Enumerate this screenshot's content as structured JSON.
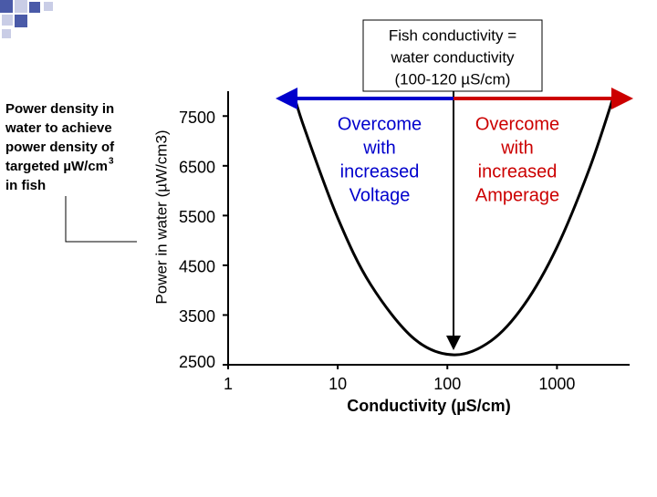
{
  "chart_data": {
    "type": "line",
    "x_label": "Conductivity (µS/cm)",
    "y_label": "Power in water (µW/cm3)",
    "x": [
      3.9,
      5,
      10,
      20,
      50,
      115,
      250,
      500,
      1000,
      2000,
      3400
    ],
    "series": [
      {
        "color": "#000000",
        "values": [
          7985,
          7236,
          5452,
          4111,
          3019,
          2700,
          2980,
          3700,
          4864,
          6472,
          8000
        ]
      }
    ],
    "xlim": [
      1,
      4600
    ],
    "xticks": [
      1,
      10,
      100,
      1000
    ],
    "log_x": true,
    "ylim": [
      2500,
      8000
    ],
    "yticks": [
      2500,
      3500,
      4500,
      5500,
      6500,
      7500
    ],
    "callout": [
      "Fish conductivity =",
      "water conductivity",
      "(100-120 µS/cm)"
    ],
    "left_annotation": [
      "Overcome",
      "with",
      "increased",
      "Voltage"
    ],
    "left_annotation_color": "#0000cc",
    "right_annotation": [
      "Overcome",
      "with",
      "increased",
      "Amperage"
    ],
    "right_annotation_color": "#cc0000",
    "note": [
      "Power density in",
      "water to achieve",
      "power density of",
      "targeted µW/cm",
      "in fish"
    ],
    "note_superscript": "3"
  }
}
